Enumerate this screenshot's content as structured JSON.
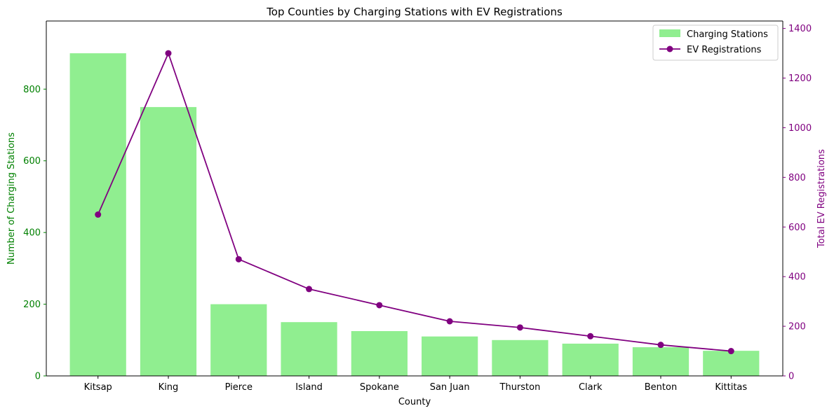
{
  "chart_data": {
    "type": "bar",
    "title": "Top Counties by Charging Stations with EV Registrations",
    "xlabel": "County",
    "ylabel": "Number of Charging Stations",
    "y2label": "Total EV Registrations",
    "categories": [
      "Kitsap",
      "King",
      "Pierce",
      "Island",
      "Spokane",
      "San Juan",
      "Thurston",
      "Clark",
      "Benton",
      "Kittitas"
    ],
    "series": [
      {
        "name": "Charging Stations",
        "type": "bar",
        "axis": "left",
        "color": "#90ee90",
        "values": [
          900,
          750,
          200,
          150,
          125,
          110,
          100,
          90,
          80,
          70
        ]
      },
      {
        "name": "EV Registrations",
        "type": "line",
        "axis": "right",
        "color": "#800080",
        "marker": "circle",
        "values": [
          650,
          1300,
          470,
          350,
          285,
          220,
          195,
          160,
          125,
          100
        ]
      }
    ],
    "ylim": [
      0,
      990
    ],
    "y2lim": [
      0,
      1430
    ],
    "yticks": [
      "0",
      "200",
      "400",
      "600",
      "800"
    ],
    "y2ticks": [
      "0",
      "200",
      "400",
      "600",
      "800",
      "1000",
      "1200",
      "1400"
    ],
    "ylabel_color": "#008000",
    "y2label_color": "#800080",
    "grid": false,
    "legend_position": "top-right"
  }
}
